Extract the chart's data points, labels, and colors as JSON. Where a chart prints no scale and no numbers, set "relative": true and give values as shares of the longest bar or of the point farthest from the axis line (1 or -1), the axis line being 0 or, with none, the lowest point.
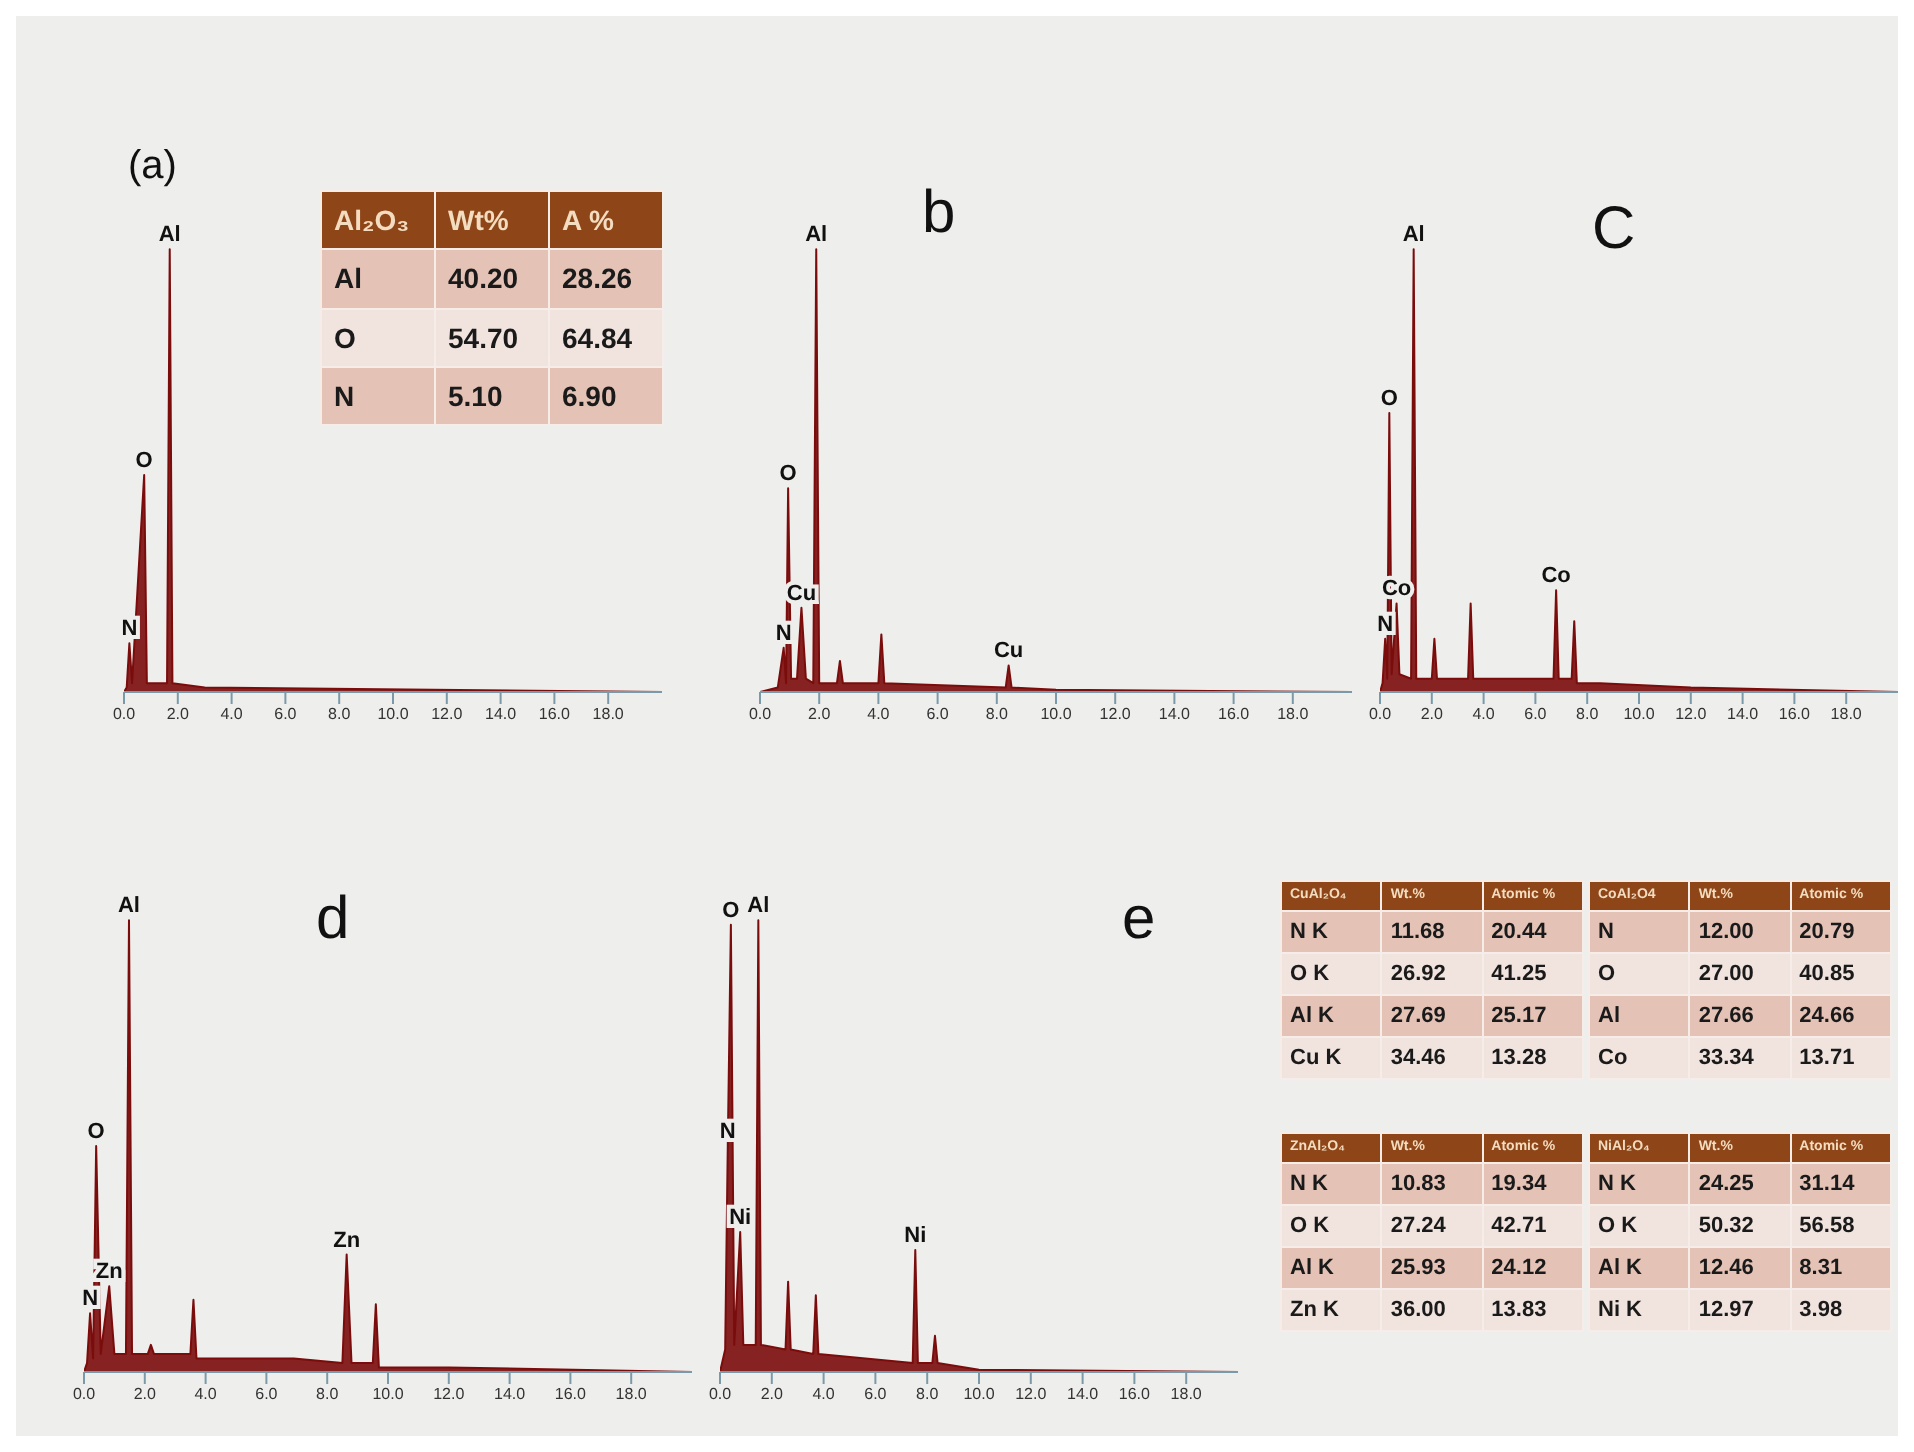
{
  "chart_data": [
    {
      "type": "area",
      "title": "(a)",
      "relative": true,
      "xlim": [
        0,
        20
      ],
      "xticks": [
        {
          "value": 0,
          "label": "0.0"
        },
        {
          "value": 2,
          "label": "2.0"
        },
        {
          "value": 4,
          "label": "4.0"
        },
        {
          "value": 6,
          "label": "6.0"
        },
        {
          "value": 8,
          "label": "8.0"
        },
        {
          "value": 10,
          "label": "10.0"
        },
        {
          "value": 12,
          "label": "12.0"
        },
        {
          "value": 14,
          "label": "14.0"
        },
        {
          "value": 16,
          "label": "16.0"
        },
        {
          "value": 18,
          "label": "18.0"
        }
      ],
      "x": [
        0,
        0.1,
        0.2,
        0.3,
        0.75,
        0.85,
        1.6,
        1.7,
        1.8,
        3.0,
        20
      ],
      "series": [
        {
          "color": "#7a0c0c",
          "values": [
            0,
            0.01,
            0.11,
            0.02,
            0.49,
            0.02,
            0.02,
            1,
            0.02,
            0.01,
            0
          ]
        }
      ],
      "annotations": [
        {
          "text": "N",
          "x": 0.2,
          "y": 0.11
        },
        {
          "text": "O",
          "x": 0.75,
          "y": 0.49
        },
        {
          "text": "Al",
          "x": 1.7,
          "y": 1
        }
      ]
    },
    {
      "type": "other",
      "title": "Al₂O₃",
      "categories": [
        "Wt%",
        "A %"
      ],
      "y_categories": [
        "Al",
        "O",
        "N"
      ],
      "cell_labels": [
        [
          "40.20",
          "28.26"
        ],
        [
          "54.70",
          "64.84"
        ],
        [
          "5.10",
          "6.90"
        ]
      ]
    },
    {
      "type": "area",
      "title": "b",
      "relative": true,
      "xlim": [
        0,
        20
      ],
      "xticks": [
        {
          "value": 0,
          "label": "0.0"
        },
        {
          "value": 2,
          "label": "2.0"
        },
        {
          "value": 4,
          "label": "4.0"
        },
        {
          "value": 6,
          "label": "6.0"
        },
        {
          "value": 8,
          "label": "8.0"
        },
        {
          "value": 10,
          "label": "10.0"
        },
        {
          "value": 12,
          "label": "12.0"
        },
        {
          "value": 14,
          "label": "14.0"
        },
        {
          "value": 16,
          "label": "16.0"
        },
        {
          "value": 18,
          "label": "18.0"
        }
      ],
      "x": [
        0,
        0.6,
        0.8,
        0.88,
        0.95,
        1.05,
        1.25,
        1.4,
        1.55,
        1.8,
        1.9,
        2.0,
        2.6,
        2.7,
        2.8,
        4.0,
        4.1,
        4.2,
        8.3,
        8.4,
        8.5,
        10,
        20
      ],
      "series": [
        {
          "color": "#7a0c0c",
          "values": [
            0,
            0.01,
            0.1,
            0.02,
            0.46,
            0.03,
            0.03,
            0.19,
            0.03,
            0.02,
            1,
            0.02,
            0.02,
            0.07,
            0.02,
            0.02,
            0.13,
            0.02,
            0.01,
            0.06,
            0.01,
            0.005,
            0
          ]
        }
      ],
      "annotations": [
        {
          "text": "N",
          "x": 0.8,
          "y": 0.1
        },
        {
          "text": "O",
          "x": 0.95,
          "y": 0.46
        },
        {
          "text": "Cu",
          "x": 1.4,
          "y": 0.19
        },
        {
          "text": "Al",
          "x": 1.9,
          "y": 1
        },
        {
          "text": "Cu",
          "x": 8.4,
          "y": 0.06
        }
      ]
    },
    {
      "type": "area",
      "title": "C",
      "relative": true,
      "xlim": [
        0,
        20
      ],
      "xticks": [
        {
          "value": 0,
          "label": "0.0"
        },
        {
          "value": 2,
          "label": "2.0"
        },
        {
          "value": 4,
          "label": "4.0"
        },
        {
          "value": 6,
          "label": "6.0"
        },
        {
          "value": 8,
          "label": "8.0"
        },
        {
          "value": 10,
          "label": "10.0"
        },
        {
          "value": 12,
          "label": "12.0"
        },
        {
          "value": 14,
          "label": "14.0"
        },
        {
          "value": 16,
          "label": "16.0"
        },
        {
          "value": 18,
          "label": "18.0"
        }
      ],
      "x": [
        0,
        0.1,
        0.2,
        0.28,
        0.36,
        0.45,
        0.64,
        0.75,
        1.2,
        1.3,
        1.4,
        2.0,
        2.1,
        2.2,
        3.4,
        3.5,
        3.6,
        6.7,
        6.8,
        6.9,
        7.4,
        7.5,
        7.6,
        8.5,
        12,
        20
      ],
      "series": [
        {
          "color": "#7a0c0c",
          "values": [
            0,
            0.02,
            0.12,
            0.03,
            0.63,
            0.04,
            0.2,
            0.04,
            0.03,
            1,
            0.03,
            0.03,
            0.12,
            0.03,
            0.03,
            0.2,
            0.03,
            0.03,
            0.23,
            0.03,
            0.03,
            0.16,
            0.02,
            0.02,
            0.01,
            0
          ]
        }
      ],
      "annotations": [
        {
          "text": "N",
          "x": 0.2,
          "y": 0.12
        },
        {
          "text": "O",
          "x": 0.36,
          "y": 0.63
        },
        {
          "text": "Co",
          "x": 0.64,
          "y": 0.2
        },
        {
          "text": "Al",
          "x": 1.3,
          "y": 1
        },
        {
          "text": "Co",
          "x": 6.8,
          "y": 0.23
        }
      ]
    },
    {
      "type": "area",
      "title": "d",
      "relative": true,
      "xlim": [
        0,
        20
      ],
      "xticks": [
        {
          "value": 0,
          "label": "0.0"
        },
        {
          "value": 2,
          "label": "2.0"
        },
        {
          "value": 4,
          "label": "4.0"
        },
        {
          "value": 6,
          "label": "6.0"
        },
        {
          "value": 8,
          "label": "8.0"
        },
        {
          "value": 10,
          "label": "10.0"
        },
        {
          "value": 12,
          "label": "12.0"
        },
        {
          "value": 14,
          "label": "14.0"
        },
        {
          "value": 16,
          "label": "16.0"
        },
        {
          "value": 18,
          "label": "18.0"
        }
      ],
      "x": [
        0,
        0.1,
        0.2,
        0.3,
        0.4,
        0.55,
        0.83,
        1.0,
        1.38,
        1.48,
        1.58,
        2.1,
        2.2,
        2.3,
        3.5,
        3.6,
        3.7,
        6.9,
        8.5,
        8.64,
        8.8,
        9.5,
        9.6,
        9.7,
        12,
        20
      ],
      "series": [
        {
          "color": "#7a0c0c",
          "values": [
            0,
            0.02,
            0.13,
            0.03,
            0.5,
            0.04,
            0.19,
            0.04,
            0.04,
            1,
            0.04,
            0.04,
            0.06,
            0.04,
            0.04,
            0.16,
            0.03,
            0.03,
            0.02,
            0.26,
            0.02,
            0.02,
            0.15,
            0.01,
            0.01,
            0
          ]
        }
      ],
      "annotations": [
        {
          "text": "N",
          "x": 0.2,
          "y": 0.13
        },
        {
          "text": "O",
          "x": 0.4,
          "y": 0.5
        },
        {
          "text": "Zn",
          "x": 0.83,
          "y": 0.19
        },
        {
          "text": "Al",
          "x": 1.48,
          "y": 1
        },
        {
          "text": "Zn",
          "x": 8.64,
          "y": 0.26
        }
      ]
    },
    {
      "type": "area",
      "title": "e",
      "relative": true,
      "xlim": [
        0,
        20
      ],
      "xticks": [
        {
          "value": 0,
          "label": "0.0"
        },
        {
          "value": 2,
          "label": "2.0"
        },
        {
          "value": 4,
          "label": "4.0"
        },
        {
          "value": 6,
          "label": "6.0"
        },
        {
          "value": 8,
          "label": "8.0"
        },
        {
          "value": 10,
          "label": "10.0"
        },
        {
          "value": 12,
          "label": "12.0"
        },
        {
          "value": 14,
          "label": "14.0"
        },
        {
          "value": 16,
          "label": "16.0"
        },
        {
          "value": 18,
          "label": "18.0"
        }
      ],
      "x": [
        0,
        0.2,
        0.3,
        0.42,
        0.55,
        0.78,
        0.9,
        1.38,
        1.48,
        1.58,
        2.53,
        2.63,
        2.73,
        3.6,
        3.7,
        3.8,
        7.44,
        7.54,
        7.64,
        8.2,
        8.3,
        8.4,
        10,
        20
      ],
      "series": [
        {
          "color": "#7a0c0c",
          "values": [
            0,
            0.05,
            0.5,
            0.99,
            0.06,
            0.31,
            0.06,
            0.06,
            1,
            0.06,
            0.05,
            0.2,
            0.05,
            0.04,
            0.17,
            0.04,
            0.02,
            0.27,
            0.02,
            0.02,
            0.08,
            0.02,
            0.005,
            0
          ]
        }
      ],
      "annotations": [
        {
          "text": "N",
          "x": 0.3,
          "y": 0.5
        },
        {
          "text": "O",
          "x": 0.42,
          "y": 0.99
        },
        {
          "text": "Ni",
          "x": 0.78,
          "y": 0.31
        },
        {
          "text": "Al",
          "x": 1.48,
          "y": 1
        },
        {
          "text": "Ni",
          "x": 7.54,
          "y": 0.27
        }
      ]
    },
    {
      "type": "other",
      "title": "CuAl₂O₄",
      "categories": [
        "Wt.%",
        "Atomic %"
      ],
      "y_categories": [
        "N K",
        "O K",
        "Al K",
        "Cu K"
      ],
      "cell_labels": [
        [
          "11.68",
          "20.44"
        ],
        [
          "26.92",
          "41.25"
        ],
        [
          "27.69",
          "25.17"
        ],
        [
          "34.46",
          "13.28"
        ]
      ]
    },
    {
      "type": "other",
      "title": "CoAl₂O4",
      "categories": [
        "Wt.%",
        "Atomic %"
      ],
      "y_categories": [
        "N",
        "O",
        "Al",
        "Co"
      ],
      "cell_labels": [
        [
          "12.00",
          "20.79"
        ],
        [
          "27.00",
          "40.85"
        ],
        [
          "27.66",
          "24.66"
        ],
        [
          "33.34",
          "13.71"
        ]
      ]
    },
    {
      "type": "other",
      "title": "ZnAl₂O₄",
      "categories": [
        "Wt.%",
        "Atomic %"
      ],
      "y_categories": [
        "N K",
        "O K",
        "Al K",
        "Zn K"
      ],
      "cell_labels": [
        [
          "10.83",
          "19.34"
        ],
        [
          "27.24",
          "42.71"
        ],
        [
          "25.93",
          "24.12"
        ],
        [
          "36.00",
          "13.83"
        ]
      ]
    },
    {
      "type": "other",
      "title": "NiAl₂O₄",
      "categories": [
        "Wt.%",
        "Atomic %"
      ],
      "y_categories": [
        "N K",
        "O K",
        "Al K",
        "Ni K"
      ],
      "cell_labels": [
        [
          "24.25",
          "31.14"
        ],
        [
          "50.32",
          "56.58"
        ],
        [
          "12.46",
          "8.31"
        ],
        [
          "12.97",
          "3.98"
        ]
      ]
    }
  ]
}
